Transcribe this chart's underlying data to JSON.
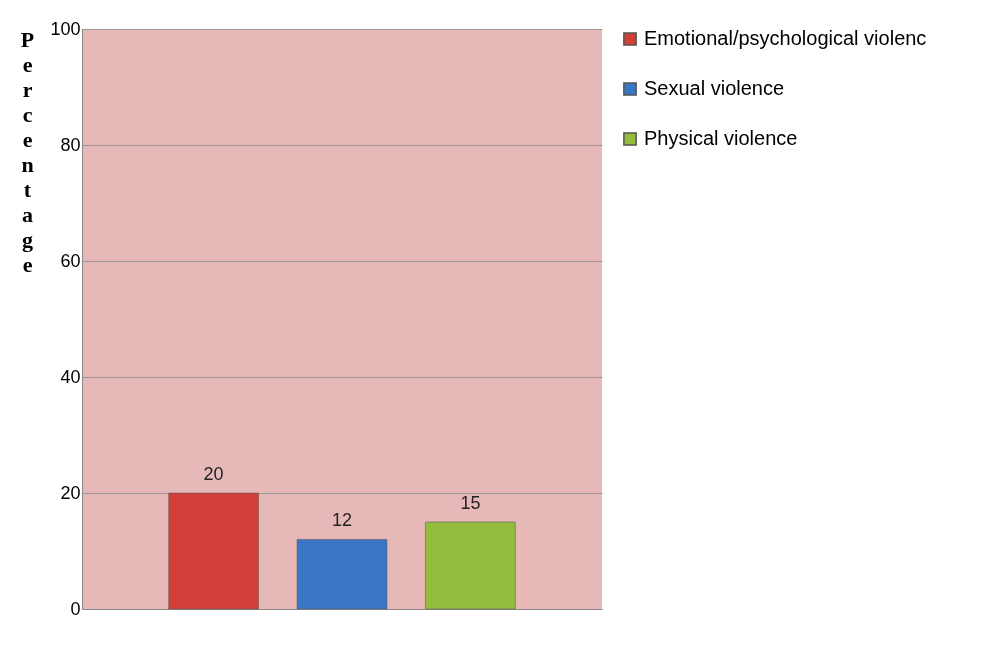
{
  "chart_data": {
    "type": "bar",
    "ylabel": "Percentage",
    "categories": [
      null
    ],
    "series": [
      {
        "name": "Emotional/psychological violenc",
        "color": "#d23f38",
        "values": [
          20
        ]
      },
      {
        "name": "Sexual violence",
        "color": "#3a76c4",
        "values": [
          12
        ]
      },
      {
        "name": "Physical violence",
        "color": "#93bd3c",
        "values": [
          15
        ]
      }
    ],
    "ylim": [
      0,
      100
    ],
    "yticks": [
      0,
      20,
      40,
      60,
      80,
      100
    ],
    "grid": "y",
    "legend": "right",
    "data_labels": true,
    "tick_labels": "y"
  }
}
